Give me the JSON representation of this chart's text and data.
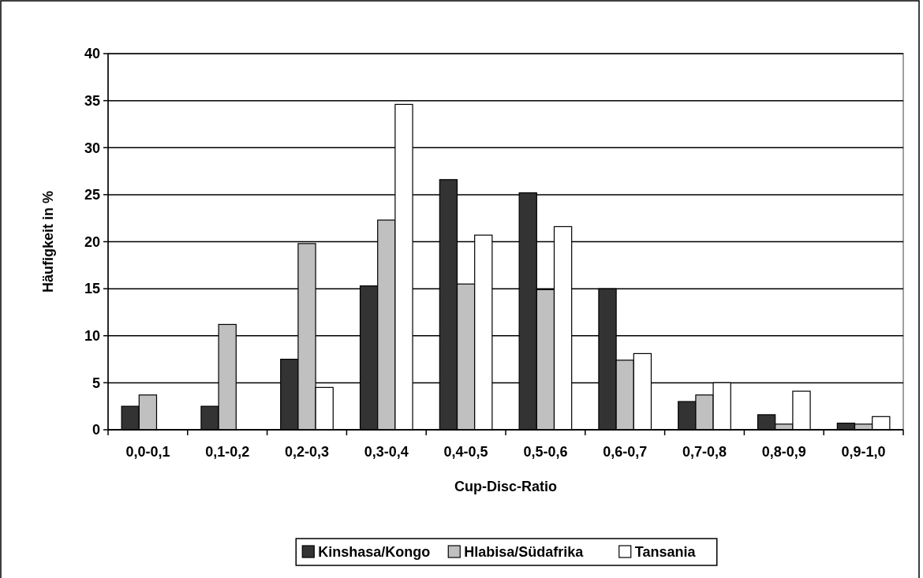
{
  "chart_data": {
    "type": "bar",
    "xlabel": "Cup-Disc-Ratio",
    "ylabel": "Häufigkeit in %",
    "categories": [
      "0,0-0,1",
      "0,1-0,2",
      "0,2-0,3",
      "0,3-0,4",
      "0,4-0,5",
      "0,5-0,6",
      "0,6-0,7",
      "0,7-0,8",
      "0,8-0,9",
      "0,9-1,0"
    ],
    "series": [
      {
        "name": "Kinshasa/Kongo",
        "color": "#333333",
        "values": [
          2.5,
          2.5,
          7.5,
          15.3,
          26.6,
          25.2,
          15.0,
          3.0,
          1.6,
          0.7
        ]
      },
      {
        "name": "Hlabisa/Südafrika",
        "color": "#c0c0c0",
        "values": [
          3.7,
          11.2,
          19.8,
          22.3,
          15.5,
          14.9,
          7.4,
          3.7,
          0.6,
          0.6
        ]
      },
      {
        "name": "Tansania",
        "color": "#ffffff",
        "values": [
          0,
          0,
          4.5,
          34.6,
          20.7,
          21.6,
          8.1,
          5.0,
          4.1,
          1.4
        ]
      }
    ],
    "ylim": [
      0,
      40
    ],
    "yticks": [
      0,
      5,
      10,
      15,
      20,
      25,
      30,
      35,
      40
    ],
    "grid": "y",
    "legend": "bottom"
  }
}
